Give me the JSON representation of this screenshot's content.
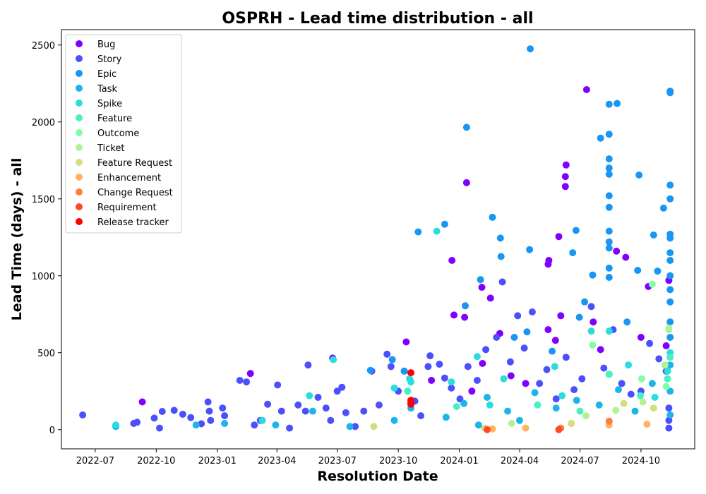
{
  "chart_data": {
    "type": "scatter",
    "title": "OSPRH - Lead time distribution - all",
    "xlabel": "Resolution Date",
    "ylabel": "Lead Time (days) - all",
    "xlim": [
      "2022-05-11",
      "2024-12-21"
    ],
    "ylim": [
      -125,
      2600
    ],
    "x_ticks": [
      "2022-07",
      "2022-10",
      "2023-01",
      "2023-04",
      "2023-07",
      "2023-10",
      "2024-01",
      "2024-04",
      "2024-07",
      "2024-10"
    ],
    "x_tick_dates": [
      "2022-07-01",
      "2022-10-01",
      "2023-01-01",
      "2023-04-01",
      "2023-07-01",
      "2023-10-01",
      "2024-01-01",
      "2024-04-01",
      "2024-07-01",
      "2024-10-01"
    ],
    "y_ticks": [
      0,
      500,
      1000,
      1500,
      2000,
      2500
    ],
    "grid": false,
    "legend_position": "top-left",
    "series": [
      {
        "name": "Bug",
        "color": "#8000ff",
        "points": [
          [
            "2023-10-13",
            570
          ],
          [
            "2023-12-21",
            1100
          ],
          [
            "2023-12-24",
            745
          ],
          [
            "2024-01-09",
            730
          ],
          [
            "2024-01-12",
            1605
          ],
          [
            "2024-02-04",
            925
          ],
          [
            "2024-02-17",
            855
          ],
          [
            "2024-03-02",
            625
          ],
          [
            "2024-05-14",
            1075
          ],
          [
            "2024-05-15",
            1100
          ],
          [
            "2024-05-30",
            1255
          ],
          [
            "2024-06-09",
            1580
          ],
          [
            "2024-06-09",
            1645
          ],
          [
            "2024-06-10",
            1720
          ],
          [
            "2024-07-11",
            2210
          ],
          [
            "2024-08-25",
            1160
          ],
          [
            "2024-10-01",
            600
          ],
          [
            "2024-10-12",
            930
          ],
          [
            "2024-11-12",
            970
          ],
          [
            "2024-05-14",
            650
          ],
          [
            "2024-06-02",
            740
          ],
          [
            "2024-07-21",
            700
          ],
          [
            "2024-02-05",
            430
          ],
          [
            "2024-03-19",
            350
          ],
          [
            "2024-09-08",
            1120
          ],
          [
            "2022-09-10",
            180
          ],
          [
            "2023-02-20",
            365
          ],
          [
            "2023-06-24",
            465
          ],
          [
            "2024-04-10",
            300
          ],
          [
            "2024-08-01",
            520
          ],
          [
            "2023-11-20",
            320
          ],
          [
            "2024-01-20",
            250
          ],
          [
            "2024-05-25",
            580
          ],
          [
            "2024-11-08",
            545
          ]
        ]
      },
      {
        "name": "Story",
        "color": "#4c50fc",
        "points": [
          [
            "2022-06-12",
            95
          ],
          [
            "2022-08-28",
            40
          ],
          [
            "2022-09-02",
            48
          ],
          [
            "2022-09-28",
            75
          ],
          [
            "2022-10-06",
            10
          ],
          [
            "2022-10-10",
            118
          ],
          [
            "2022-10-28",
            125
          ],
          [
            "2022-11-10",
            100
          ],
          [
            "2022-11-22",
            78
          ],
          [
            "2022-12-08",
            38
          ],
          [
            "2022-12-18",
            180
          ],
          [
            "2022-12-20",
            120
          ],
          [
            "2022-12-22",
            60
          ],
          [
            "2023-01-09",
            140
          ],
          [
            "2023-01-12",
            90
          ],
          [
            "2023-02-04",
            320
          ],
          [
            "2023-02-14",
            310
          ],
          [
            "2023-02-26",
            30
          ],
          [
            "2023-03-07",
            60
          ],
          [
            "2023-03-18",
            165
          ],
          [
            "2023-04-02",
            290
          ],
          [
            "2023-04-08",
            120
          ],
          [
            "2023-04-20",
            10
          ],
          [
            "2023-05-03",
            160
          ],
          [
            "2023-05-14",
            120
          ],
          [
            "2023-05-18",
            420
          ],
          [
            "2023-06-02",
            210
          ],
          [
            "2023-06-14",
            140
          ],
          [
            "2023-06-21",
            60
          ],
          [
            "2023-07-01",
            250
          ],
          [
            "2023-07-08",
            275
          ],
          [
            "2023-07-14",
            110
          ],
          [
            "2023-07-28",
            20
          ],
          [
            "2023-08-10",
            120
          ],
          [
            "2023-08-22",
            380
          ],
          [
            "2023-09-02",
            160
          ],
          [
            "2023-09-14",
            490
          ],
          [
            "2023-09-20",
            410
          ],
          [
            "2023-10-01",
            250
          ],
          [
            "2023-10-10",
            380
          ],
          [
            "2023-10-26",
            185
          ],
          [
            "2023-11-04",
            90
          ],
          [
            "2023-11-15",
            410
          ],
          [
            "2023-11-18",
            480
          ],
          [
            "2023-12-02",
            425
          ],
          [
            "2023-12-10",
            335
          ],
          [
            "2023-12-20",
            270
          ],
          [
            "2024-01-02",
            200
          ],
          [
            "2024-01-14",
            410
          ],
          [
            "2024-01-28",
            320
          ],
          [
            "2024-02-10",
            520
          ],
          [
            "2024-02-26",
            600
          ],
          [
            "2024-03-06",
            960
          ],
          [
            "2024-03-18",
            440
          ],
          [
            "2024-03-29",
            740
          ],
          [
            "2024-04-08",
            530
          ],
          [
            "2024-04-20",
            765
          ],
          [
            "2024-05-01",
            300
          ],
          [
            "2024-05-12",
            390
          ],
          [
            "2024-05-26",
            200
          ],
          [
            "2024-06-10",
            470
          ],
          [
            "2024-06-22",
            260
          ],
          [
            "2024-07-04",
            330
          ],
          [
            "2024-07-18",
            800
          ],
          [
            "2024-08-06",
            400
          ],
          [
            "2024-08-20",
            650
          ],
          [
            "2024-09-02",
            300
          ],
          [
            "2024-09-16",
            230
          ],
          [
            "2024-10-01",
            250
          ],
          [
            "2024-10-14",
            560
          ],
          [
            "2024-10-28",
            460
          ],
          [
            "2024-11-08",
            380
          ],
          [
            "2024-11-12",
            140
          ],
          [
            "2024-11-12",
            60
          ],
          [
            "2024-11-12",
            10
          ]
        ]
      },
      {
        "name": "Epic",
        "color": "#1996f3",
        "points": [
          [
            "2023-08-20",
            385
          ],
          [
            "2023-10-31",
            1285
          ],
          [
            "2023-12-10",
            1335
          ],
          [
            "2024-01-12",
            1965
          ],
          [
            "2024-02-20",
            1380
          ],
          [
            "2024-03-03",
            1245
          ],
          [
            "2024-03-04",
            1125
          ],
          [
            "2024-04-17",
            2475
          ],
          [
            "2024-04-16",
            1170
          ],
          [
            "2024-06-20",
            1150
          ],
          [
            "2024-06-25",
            1295
          ],
          [
            "2024-07-20",
            1005
          ],
          [
            "2024-08-01",
            1895
          ],
          [
            "2024-08-14",
            2115
          ],
          [
            "2024-08-14",
            1920
          ],
          [
            "2024-08-14",
            1760
          ],
          [
            "2024-08-14",
            1700
          ],
          [
            "2024-08-14",
            1660
          ],
          [
            "2024-08-14",
            1520
          ],
          [
            "2024-08-14",
            1445
          ],
          [
            "2024-08-14",
            1290
          ],
          [
            "2024-08-14",
            1220
          ],
          [
            "2024-08-14",
            1180
          ],
          [
            "2024-08-14",
            1050
          ],
          [
            "2024-08-14",
            990
          ],
          [
            "2024-08-26",
            2120
          ],
          [
            "2024-09-28",
            1655
          ],
          [
            "2024-09-26",
            1035
          ],
          [
            "2024-10-20",
            1265
          ],
          [
            "2024-10-26",
            1030
          ],
          [
            "2024-11-04",
            1440
          ],
          [
            "2024-11-14",
            2200
          ],
          [
            "2024-11-14",
            2190
          ],
          [
            "2024-11-14",
            1590
          ],
          [
            "2024-11-14",
            1500
          ],
          [
            "2024-11-14",
            1270
          ],
          [
            "2024-11-14",
            1245
          ],
          [
            "2024-11-14",
            1150
          ],
          [
            "2024-11-14",
            1100
          ],
          [
            "2024-11-14",
            1000
          ],
          [
            "2024-11-14",
            910
          ],
          [
            "2024-11-14",
            830
          ],
          [
            "2024-11-14",
            700
          ],
          [
            "2024-11-14",
            600
          ],
          [
            "2024-02-02",
            975
          ],
          [
            "2024-01-10",
            805
          ],
          [
            "2024-04-12",
            635
          ],
          [
            "2024-09-10",
            700
          ],
          [
            "2023-09-22",
            455
          ],
          [
            "2023-10-10",
            380
          ],
          [
            "2024-05-20",
            510
          ],
          [
            "2024-07-08",
            830
          ],
          [
            "2024-03-24",
            600
          ],
          [
            "2024-06-30",
            730
          ]
        ]
      },
      {
        "name": "Task",
        "color": "#1cb4ea",
        "points": [
          [
            "2022-08-01",
            20
          ],
          [
            "2022-11-30",
            30
          ],
          [
            "2023-01-12",
            40
          ],
          [
            "2023-03-30",
            30
          ],
          [
            "2023-05-25",
            120
          ],
          [
            "2023-07-20",
            20
          ],
          [
            "2023-09-25",
            60
          ],
          [
            "2023-10-20",
            140
          ],
          [
            "2023-12-12",
            80
          ],
          [
            "2024-01-08",
            170
          ],
          [
            "2024-02-12",
            210
          ],
          [
            "2024-03-14",
            120
          ],
          [
            "2024-04-24",
            240
          ],
          [
            "2024-05-26",
            140
          ],
          [
            "2024-06-26",
            190
          ],
          [
            "2024-07-30",
            160
          ],
          [
            "2024-08-28",
            260
          ],
          [
            "2024-09-22",
            120
          ],
          [
            "2024-10-18",
            300
          ],
          [
            "2024-11-14",
            420
          ],
          [
            "2024-11-14",
            250
          ],
          [
            "2024-11-14",
            95
          ],
          [
            "2024-08-14",
            360
          ],
          [
            "2024-04-01",
            60
          ],
          [
            "2024-01-30",
            30
          ]
        ]
      },
      {
        "name": "Spike",
        "color": "#2adddd",
        "points": [
          [
            "2022-08-01",
            30
          ],
          [
            "2023-11-28",
            1290
          ],
          [
            "2023-10-18",
            330
          ],
          [
            "2023-10-20",
            310
          ],
          [
            "2023-09-25",
            270
          ],
          [
            "2023-06-25",
            455
          ],
          [
            "2023-05-20",
            220
          ],
          [
            "2023-03-10",
            60
          ],
          [
            "2024-01-28",
            475
          ],
          [
            "2024-03-08",
            330
          ],
          [
            "2024-05-24",
            410
          ],
          [
            "2024-07-18",
            640
          ],
          [
            "2024-08-14",
            640
          ],
          [
            "2024-11-10",
            380
          ],
          [
            "2024-11-14",
            500
          ],
          [
            "2023-12-20",
            310
          ],
          [
            "2024-02-16",
            160
          ],
          [
            "2024-06-04",
            220
          ],
          [
            "2024-09-12",
            420
          ],
          [
            "2024-10-22",
            210
          ]
        ]
      },
      {
        "name": "Feature",
        "color": "#49f0c4",
        "points": [
          [
            "2023-10-15",
            250
          ],
          [
            "2024-08-14",
            360
          ],
          [
            "2024-11-10",
            330
          ],
          [
            "2024-11-14",
            470
          ],
          [
            "2024-07-01",
            120
          ],
          [
            "2024-04-28",
            160
          ],
          [
            "2024-09-30",
            220
          ],
          [
            "2023-12-28",
            150
          ]
        ]
      },
      {
        "name": "Outcome",
        "color": "#7ffea7",
        "points": [
          [
            "2024-10-18",
            945
          ],
          [
            "2024-11-12",
            650
          ],
          [
            "2024-11-08",
            280
          ],
          [
            "2024-07-20",
            550
          ],
          [
            "2024-10-02",
            330
          ]
        ]
      },
      {
        "name": "Ticket",
        "color": "#b2f296",
        "points": [
          [
            "2024-11-12",
            660
          ],
          [
            "2024-10-04",
            180
          ],
          [
            "2024-08-24",
            125
          ],
          [
            "2024-07-10",
            90
          ],
          [
            "2024-03-20",
            40
          ],
          [
            "2024-11-06",
            420
          ]
        ]
      },
      {
        "name": "Feature Request",
        "color": "#d4dd80",
        "points": [
          [
            "2023-08-25",
            20
          ],
          [
            "2024-02-08",
            10
          ],
          [
            "2024-09-05",
            170
          ],
          [
            "2024-10-20",
            140
          ],
          [
            "2024-06-18",
            40
          ]
        ]
      },
      {
        "name": "Enhancement",
        "color": "#ffb360",
        "points": [
          [
            "2024-04-10",
            10
          ],
          [
            "2024-08-14",
            30
          ],
          [
            "2024-10-10",
            35
          ],
          [
            "2024-02-20",
            5
          ]
        ]
      },
      {
        "name": "Change Request",
        "color": "#ff7f41",
        "points": [
          [
            "2024-06-02",
            10
          ],
          [
            "2024-08-14",
            55
          ]
        ]
      },
      {
        "name": "Requirement",
        "color": "#fd4a25",
        "points": [
          [
            "2024-02-12",
            0
          ],
          [
            "2024-05-30",
            0
          ]
        ]
      },
      {
        "name": "Release tracker",
        "color": "#ff0000",
        "points": [
          [
            "2023-10-20",
            370
          ],
          [
            "2023-10-20",
            190
          ],
          [
            "2023-10-20",
            175
          ],
          [
            "2023-10-20",
            165
          ]
        ]
      }
    ]
  }
}
